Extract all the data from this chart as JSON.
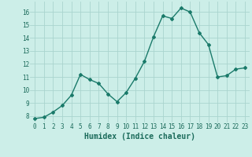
{
  "xlabel": "Humidex (Indice chaleur)",
  "x": [
    0,
    1,
    2,
    3,
    4,
    5,
    6,
    7,
    8,
    9,
    10,
    11,
    12,
    13,
    14,
    15,
    16,
    17,
    18,
    19,
    20,
    21,
    22,
    23
  ],
  "y": [
    7.8,
    7.9,
    8.3,
    8.8,
    9.6,
    11.2,
    10.8,
    10.5,
    9.7,
    9.1,
    9.8,
    10.9,
    12.2,
    14.1,
    15.7,
    15.5,
    16.3,
    16.0,
    14.4,
    13.5,
    11.0,
    11.1,
    11.6,
    11.7
  ],
  "line_color": "#1a7a6a",
  "marker": "D",
  "marker_size": 2.0,
  "bg_color": "#cceee8",
  "grid_color": "#aad4ce",
  "tick_label_color": "#1a6a5a",
  "xlabel_color": "#1a6a5a",
  "ylim": [
    7.5,
    16.8
  ],
  "yticks": [
    8,
    9,
    10,
    11,
    12,
    13,
    14,
    15,
    16
  ],
  "xticks": [
    0,
    1,
    2,
    3,
    4,
    5,
    6,
    7,
    8,
    9,
    10,
    11,
    12,
    13,
    14,
    15,
    16,
    17,
    18,
    19,
    20,
    21,
    22,
    23
  ],
  "xtick_labels": [
    "0",
    "1",
    "2",
    "3",
    "4",
    "5",
    "6",
    "7",
    "8",
    "9",
    "10",
    "11",
    "12",
    "13",
    "14",
    "15",
    "16",
    "17",
    "18",
    "19",
    "20",
    "21",
    "22",
    "23"
  ],
  "linewidth": 1.0,
  "tick_fontsize": 5.5,
  "xlabel_fontsize": 7.0
}
